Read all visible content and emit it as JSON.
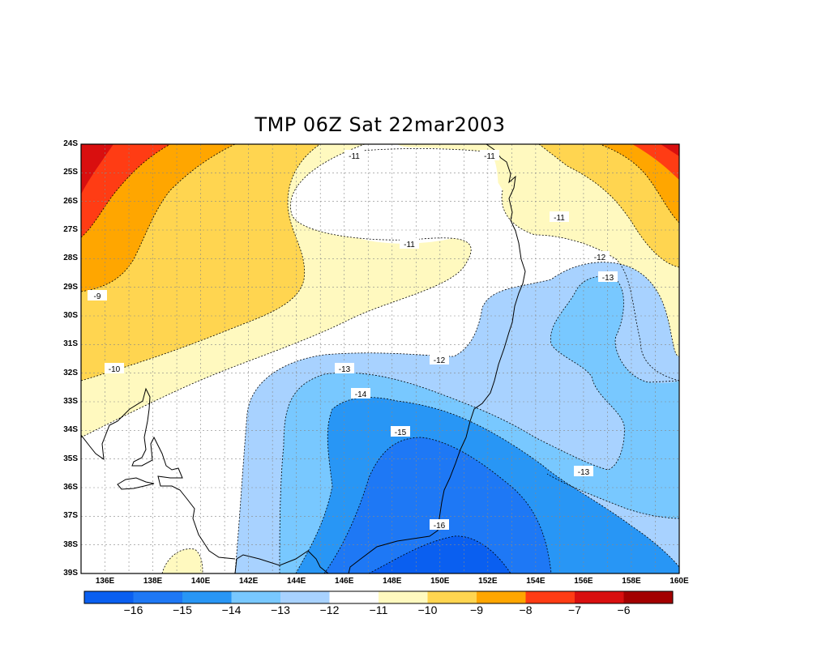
{
  "title": "TMP 06Z Sat 22mar2003",
  "map": {
    "lat_ticks": [
      "24S",
      "25S",
      "26S",
      "27S",
      "28S",
      "29S",
      "30S",
      "31S",
      "32S",
      "33S",
      "34S",
      "35S",
      "36S",
      "37S",
      "38S",
      "39S"
    ],
    "lon_ticks": [
      "136E",
      "138E",
      "140E",
      "142E",
      "144E",
      "146E",
      "148E",
      "150E",
      "152E",
      "154E",
      "156E",
      "158E",
      "160E"
    ],
    "lat_range": [
      -39,
      -24
    ],
    "lon_range": [
      135,
      160
    ],
    "grid": true
  },
  "contour_labels": [
    "-11",
    "-11",
    "-11",
    "-11",
    "-12",
    "-13",
    "-9",
    "-10",
    "-13",
    "-12",
    "-14",
    "-15",
    "-13",
    "-16"
  ],
  "colorbar": {
    "labels": [
      "-16",
      "-15",
      "-14",
      "-13",
      "-12",
      "-11",
      "-10",
      "-9",
      "-8",
      "-7",
      "-6"
    ],
    "colors": [
      "#0a5ff0",
      "#1e78f5",
      "#2896f5",
      "#78c8ff",
      "#a8d2ff",
      "#ffffff",
      "#fff9bf",
      "#ffd550",
      "#ffa600",
      "#ff3c14",
      "#d90f0f",
      "#a30000"
    ]
  },
  "fill_colors": {
    "c_16": "#0a5ff0",
    "c_15": "#1e78f5",
    "c_14": "#2896f5",
    "c_13": "#78c8ff",
    "c_12": "#a8d2ff",
    "c_11": "#ffffff",
    "c_10": "#fff9bf",
    "c_9": "#ffd550",
    "c_8": "#ffa600",
    "c_7": "#ff3c14",
    "c_6": "#d90f0f",
    "c_5": "#a30000"
  }
}
